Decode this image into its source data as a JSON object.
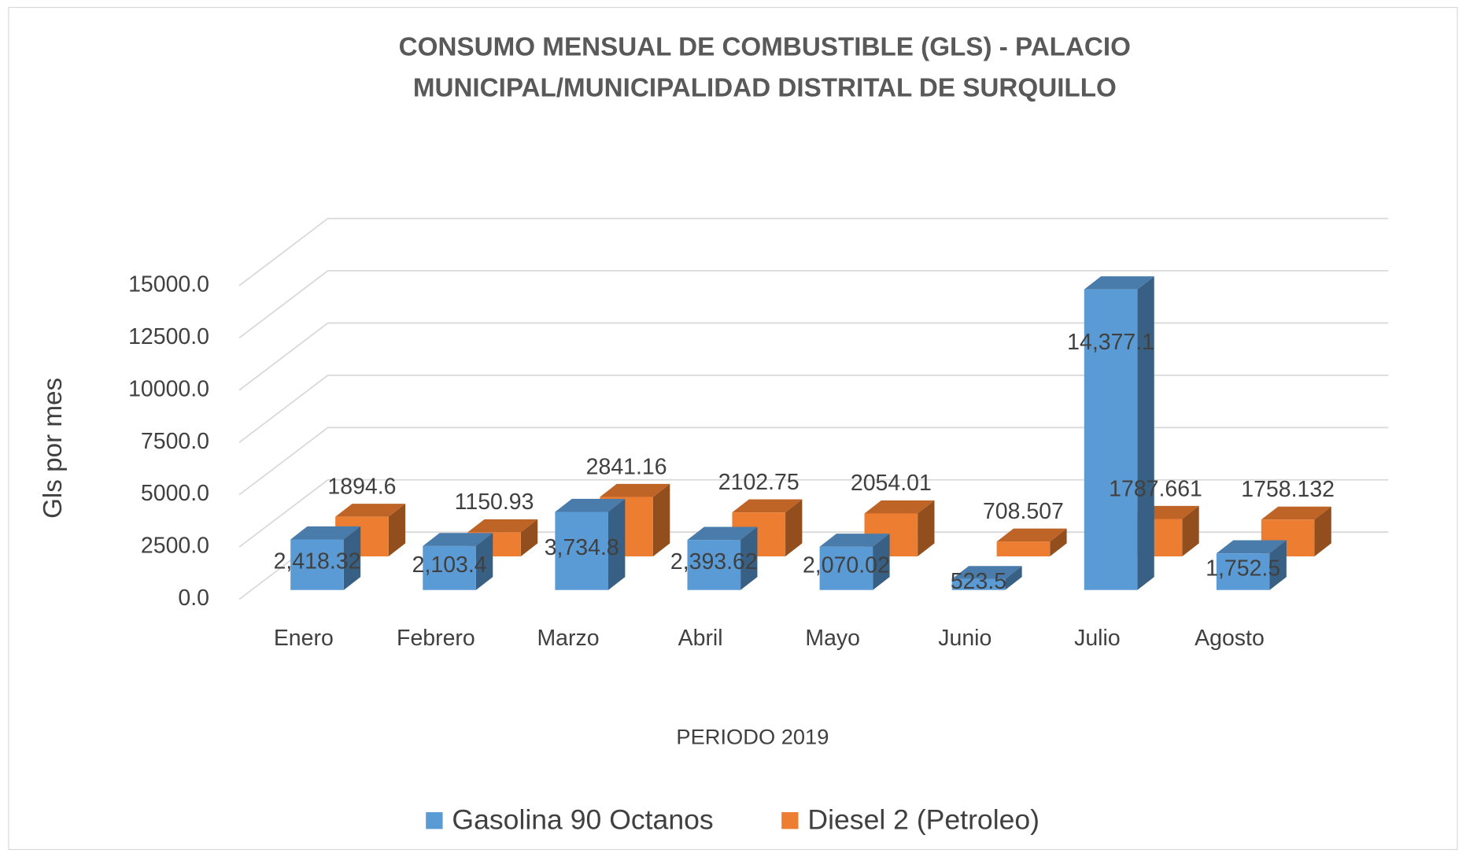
{
  "chart_data": {
    "type": "bar3d",
    "title": [
      "CONSUMO MENSUAL DE COMBUSTIBLE (GLS) - PALACIO",
      "MUNICIPAL/MUNICIPALIDAD DISTRITAL DE SURQUILLO"
    ],
    "y_axis_label": "Gls por mes",
    "x_axis_label": "PERIODO 2019",
    "categories": [
      "Enero",
      "Febrero",
      "Marzo",
      "Abril",
      "Mayo",
      "Junio",
      "Julio",
      "Agosto"
    ],
    "series": [
      {
        "name": "Gasolina 90 Octanos",
        "color": "#5b9bd5",
        "values": [
          2418.32,
          2103.4,
          3734.8,
          2393.62,
          2070.02,
          523.5,
          14377.1,
          1752.5
        ],
        "value_labels": [
          "2,418.32",
          "2,103.4",
          "3,734.8",
          "2,393.62",
          "2,070.02",
          "523.5",
          "14,377.1",
          "1,752.5"
        ]
      },
      {
        "name": "Diesel 2 (Petroleo)",
        "color": "#ed7d31",
        "values": [
          1894.6,
          1150.93,
          2841.16,
          2102.75,
          2054.01,
          708.507,
          1787.661,
          1758.132
        ]
      }
    ],
    "ylim": [
      0,
      15000
    ],
    "yticks": [
      {
        "value": 0,
        "label": "0.0"
      },
      {
        "value": 2500,
        "label": "2500.0"
      },
      {
        "value": 5000,
        "label": "5000.0"
      },
      {
        "value": 7500,
        "label": "7500.0"
      },
      {
        "value": 10000,
        "label": "10000.0"
      },
      {
        "value": 12500,
        "label": "12500.0"
      },
      {
        "value": 15000,
        "label": "15000.0"
      }
    ],
    "grid": true,
    "legend": "bottom"
  }
}
